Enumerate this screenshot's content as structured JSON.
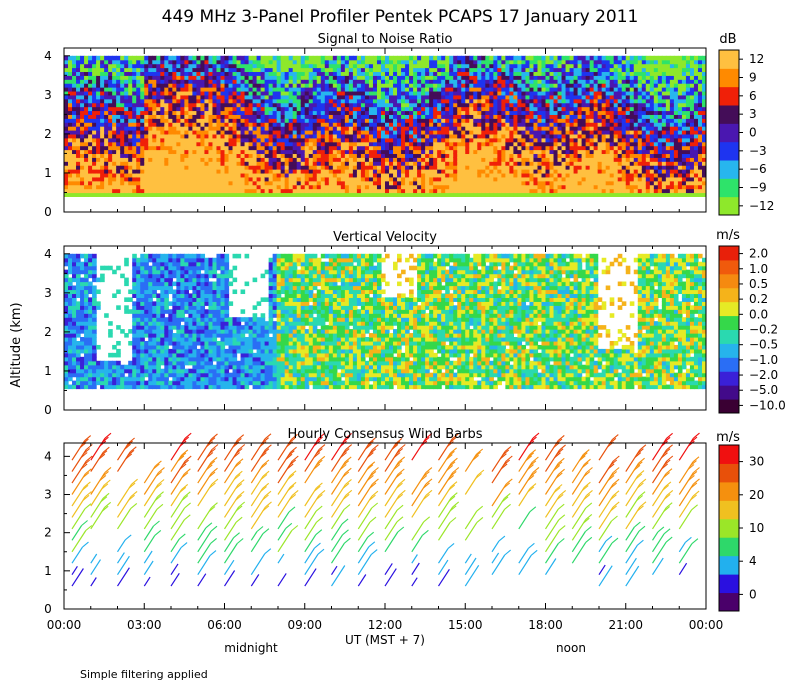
{
  "chart_data": {
    "type": "heatmap",
    "title": "449 MHz 3-Panel Profiler Pentek PCAPS 17 January 2011",
    "ylabel": "Altitude (km)",
    "xlabel": "UT  (MST + 7)",
    "x_ticks": [
      "00:00",
      "03:00",
      "06:00",
      "09:00",
      "12:00",
      "15:00",
      "18:00",
      "21:00",
      "00:00"
    ],
    "x_range_hours": [
      0,
      24
    ],
    "y_ticks": [
      "0",
      "1",
      "2",
      "3",
      "4"
    ],
    "y_range_km": [
      0,
      4.2
    ],
    "x_annotations": [
      {
        "label": "midnight",
        "hour": 7
      },
      {
        "label": "noon",
        "hour": 19
      }
    ],
    "footnote": "Simple filtering applied",
    "panels": [
      {
        "id": "snr",
        "subtitle": "Signal to Noise Ratio",
        "unit": "dB",
        "colorbar_ticks": [
          "12",
          "9",
          "6",
          "3",
          "0",
          "−3",
          "−6",
          "−9",
          "−12"
        ],
        "colors": [
          "#8ee82b",
          "#2ee36a",
          "#27b6ee",
          "#1e34f0",
          "#4a17b0",
          "#440d58",
          "#f02008",
          "#ff8a00",
          "#ffc040"
        ],
        "range_top_km": 4.0,
        "range_bottom_km": 0.4
      },
      {
        "id": "vv",
        "subtitle": "Vertical Velocity",
        "unit": "m/s",
        "colorbar_ticks": [
          "2.0",
          "1.0",
          "0.5",
          "0.2",
          "0.0",
          "−0.2",
          "−0.5",
          "−1.0",
          "−2.0",
          "−5.0",
          "−10.0"
        ],
        "colors": [
          "#3a0033",
          "#420a8a",
          "#3a20d8",
          "#2a6ef5",
          "#26b4ec",
          "#2ad9b0",
          "#35d84a",
          "#e6ea25",
          "#f5b31a",
          "#f58a10",
          "#f05a0c",
          "#e8200a"
        ],
        "range_top_km": 4.0,
        "range_bottom_km": 0.55
      },
      {
        "id": "wind",
        "subtitle": "Hourly Consensus Wind Barbs",
        "unit": "m/s",
        "colorbar_ticks": [
          "30",
          "20",
          "10",
          "4",
          "0"
        ],
        "colors": [
          "#4a006a",
          "#2a10e0",
          "#22b0ee",
          "#2ed86a",
          "#9be628",
          "#f0c020",
          "#f5900e",
          "#e8500a",
          "#f01010"
        ],
        "barb_hours": [
          0.3,
          1,
          2,
          3,
          4,
          5,
          6,
          7,
          8,
          9,
          10,
          11,
          12,
          13,
          14,
          15,
          16,
          17,
          18,
          19,
          20,
          21,
          22,
          23
        ],
        "barb_altitudes_km": [
          0.6,
          0.9,
          1.2,
          1.5,
          1.8,
          2.1,
          2.4,
          2.7,
          3.0,
          3.3,
          3.6,
          3.9
        ]
      }
    ]
  }
}
